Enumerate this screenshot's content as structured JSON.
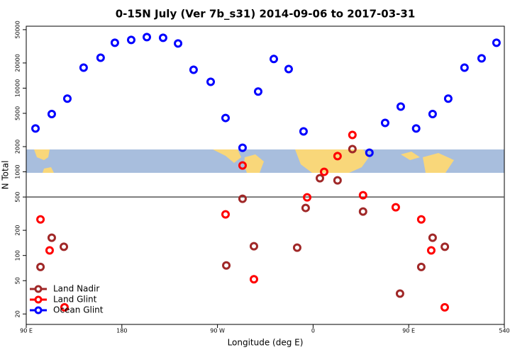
{
  "chart_data": {
    "type": "scatter",
    "title": "0-15N July (Ver 7b_s31)   2014-09-06 to 2017-03-31",
    "x_label": "Longitude (deg E)",
    "y_label": "N Total",
    "xlim": [
      90,
      540
    ],
    "xticks": [
      {
        "value": 90,
        "label": "90 E"
      },
      180,
      {
        "value": 270,
        "label": "90 W"
      },
      {
        "value": 360,
        "label": "0"
      },
      {
        "value": 450,
        "label": "90 E"
      },
      540
    ],
    "ylim": [
      15,
      55000
    ],
    "log_y": true,
    "yticks": [
      20,
      50,
      100,
      200,
      500,
      1000,
      2000,
      5000,
      10000,
      20000,
      50000
    ],
    "hline": 500,
    "legend": "lower left",
    "series": [
      {
        "name": "Land Nadir",
        "color": "#a02828",
        "x": [
          103.4,
          114,
          125.4,
          278.3,
          293.6,
          304.3,
          345,
          353,
          366.4,
          383,
          397,
          407,
          441.8,
          461.8,
          472.5,
          484
        ],
        "values": [
          73,
          163,
          127,
          76,
          476,
          129,
          124,
          370,
          839,
          791,
          1870,
          335,
          35,
          73,
          163,
          127
        ]
      },
      {
        "name": "Land Glint",
        "color": "#ff0000",
        "x": [
          103.4,
          112,
          126,
          277.6,
          293.6,
          304.3,
          354.4,
          370.4,
          383,
          397,
          407,
          437.8,
          461.8,
          471.2,
          483.9
        ],
        "values": [
          270,
          115,
          24,
          310,
          1190,
          52,
          495,
          1000,
          1540,
          2760,
          525,
          377,
          270,
          115,
          24
        ]
      },
      {
        "name": "Ocean Glint",
        "color": "#0000ff",
        "x": [
          98.7,
          114,
          128.7,
          144,
          160,
          173.4,
          188.8,
          203.5,
          218.8,
          232.9,
          247.5,
          263.6,
          277.6,
          293.6,
          308.3,
          323,
          337,
          351,
          413,
          427.8,
          442.5,
          457,
          472.5,
          487.2,
          502.5,
          518.6,
          532.6
        ],
        "values": [
          3300,
          4900,
          7500,
          17600,
          23100,
          34900,
          37700,
          40800,
          40000,
          34200,
          16600,
          11900,
          4400,
          1940,
          9100,
          22300,
          16900,
          3040,
          1690,
          3840,
          6020,
          3300,
          4900,
          7500,
          17600,
          22700,
          34900
        ]
      }
    ]
  }
}
